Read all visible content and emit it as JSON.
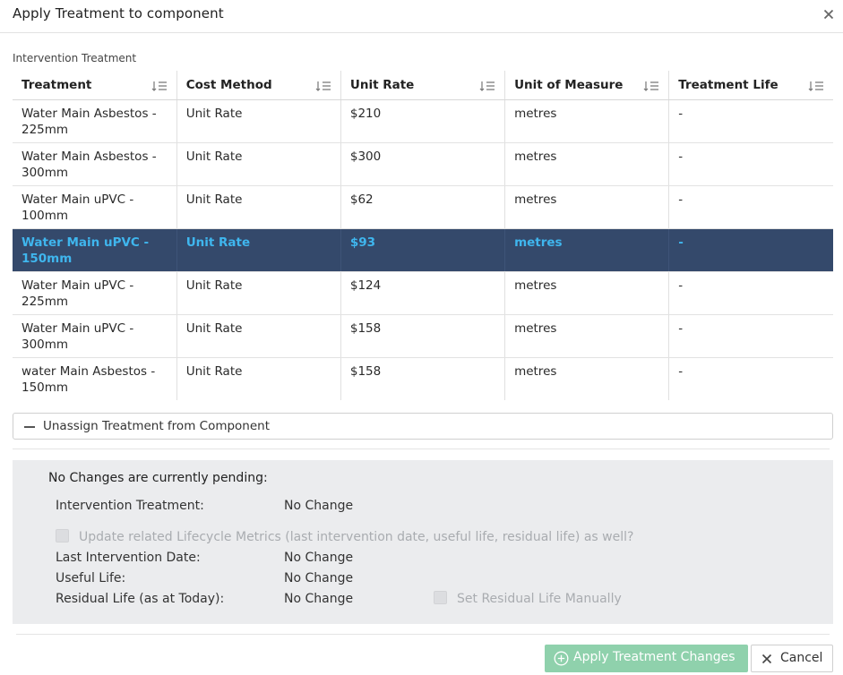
{
  "dialog": {
    "title": "Apply Treatment to component",
    "close_icon": "close-icon"
  },
  "section_label": "Intervention Treatment",
  "table": {
    "columns": [
      "Treatment",
      "Cost Method",
      "Unit Rate",
      "Unit of Measure",
      "Treatment Life"
    ],
    "sort_icon": "sort-icon",
    "selected_index": 3,
    "rows": [
      {
        "treatment": "Water Main Asbestos - 225mm",
        "cost_method": "Unit Rate",
        "unit_rate": "$210",
        "unit_of_measure": "metres",
        "treatment_life": "-"
      },
      {
        "treatment": "Water Main Asbestos - 300mm",
        "cost_method": "Unit Rate",
        "unit_rate": "$300",
        "unit_of_measure": "metres",
        "treatment_life": "-"
      },
      {
        "treatment": "Water Main uPVC - 100mm",
        "cost_method": "Unit Rate",
        "unit_rate": "$62",
        "unit_of_measure": "metres",
        "treatment_life": "-"
      },
      {
        "treatment": "Water Main uPVC - 150mm",
        "cost_method": "Unit Rate",
        "unit_rate": "$93",
        "unit_of_measure": "metres",
        "treatment_life": "-"
      },
      {
        "treatment": "Water Main uPVC - 225mm",
        "cost_method": "Unit Rate",
        "unit_rate": "$124",
        "unit_of_measure": "metres",
        "treatment_life": "-"
      },
      {
        "treatment": "Water Main uPVC - 300mm",
        "cost_method": "Unit Rate",
        "unit_rate": "$158",
        "unit_of_measure": "metres",
        "treatment_life": "-"
      },
      {
        "treatment": "water Main Asbestos - 150mm",
        "cost_method": "Unit Rate",
        "unit_rate": "$158",
        "unit_of_measure": "metres",
        "treatment_life": "-"
      }
    ]
  },
  "unassign_label": "Unassign Treatment from Component",
  "pending": {
    "heading": "No Changes are currently pending:",
    "intervention_treatment_label": "Intervention Treatment:",
    "intervention_treatment_value": "No Change",
    "update_lifecycle_label": "Update related Lifecycle Metrics (last intervention date, useful life, residual life) as well?",
    "update_lifecycle_checked": false,
    "last_intervention_label": "Last Intervention Date:",
    "last_intervention_value": "No Change",
    "useful_life_label": "Useful Life:",
    "useful_life_value": "No Change",
    "residual_life_label": "Residual Life (as at Today):",
    "residual_life_value": "No Change",
    "set_residual_label": "Set Residual Life Manually",
    "set_residual_checked": false
  },
  "footer": {
    "apply_label": "Apply Treatment Changes",
    "apply_icon": "plus-circle-icon",
    "cancel_label": "Cancel",
    "cancel_icon": "close-icon"
  },
  "colors": {
    "selected_row_bg": "#34496b",
    "selected_row_text": "#3fb6ee",
    "apply_button_bg": "#8fd1ac",
    "panel_bg": "#ebecee"
  }
}
